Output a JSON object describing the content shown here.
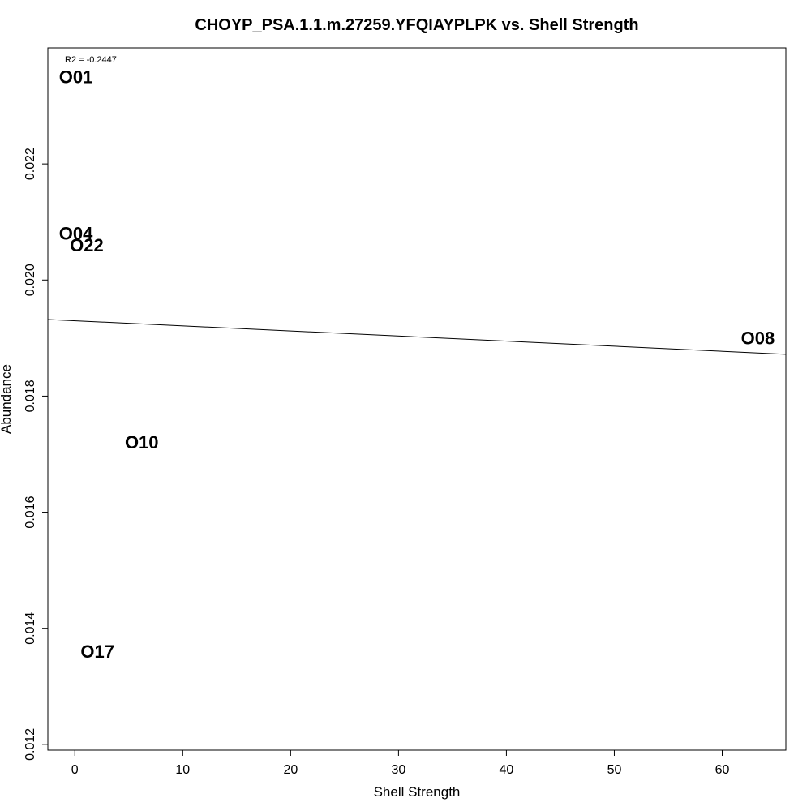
{
  "chart_data": {
    "type": "scatter",
    "title": "CHOYP_PSA.1.1.m.27259.YFQIAYPLPK vs. Shell Strength",
    "xlabel": "Shell Strength",
    "ylabel": "Abundance",
    "annotation": "R2 = -0.2447",
    "xlim": [
      -2.5,
      65.9
    ],
    "ylim": [
      0.0119,
      0.024
    ],
    "x_ticks": [
      0,
      10,
      20,
      30,
      40,
      50,
      60
    ],
    "x_tick_labels": [
      "0",
      "10",
      "20",
      "30",
      "40",
      "50",
      "60"
    ],
    "y_ticks": [
      0.012,
      0.014,
      0.016,
      0.018,
      0.02,
      0.022
    ],
    "y_tick_labels": [
      "0.012",
      "0.014",
      "0.016",
      "0.018",
      "0.020",
      "0.022"
    ],
    "grid": false,
    "points": [
      {
        "label": "O01",
        "x": 0.1,
        "y": 0.0235
      },
      {
        "label": "O04",
        "x": 0.1,
        "y": 0.0208
      },
      {
        "label": "O22",
        "x": 1.1,
        "y": 0.0206
      },
      {
        "label": "O08",
        "x": 63.3,
        "y": 0.019
      },
      {
        "label": "O10",
        "x": 6.2,
        "y": 0.0172
      },
      {
        "label": "O17",
        "x": 2.1,
        "y": 0.0136
      }
    ],
    "trendline": {
      "x": [
        -2.5,
        65.9
      ],
      "y": [
        0.01932,
        0.01872
      ]
    }
  }
}
